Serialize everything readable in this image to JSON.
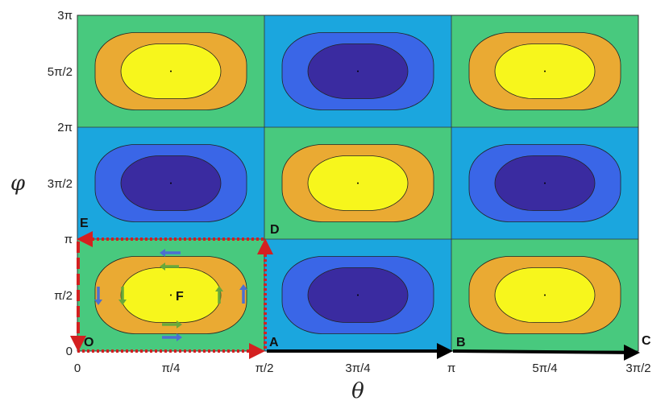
{
  "axes": {
    "xlabel": "θ",
    "ylabel": "φ",
    "xticks": [
      "0",
      "π/4",
      "π/2",
      "3π/4",
      "π",
      "5π/4",
      "3π/2"
    ],
    "yticks": [
      "0",
      "π/2",
      "π",
      "3π/2",
      "2π",
      "5π/2",
      "3π"
    ]
  },
  "colors": {
    "background_green": "#48c97e",
    "background_blue": "#1ba6de",
    "warm_ring": "#eaaa33",
    "warm_core": "#f7f61c",
    "cool_ring": "#3a66e7",
    "cool_core": "#3a2ba0",
    "path_red": "#d42020",
    "arrow_blue": "#4c6fd0",
    "arrow_green": "#68a93a",
    "path_black": "#000000"
  },
  "points": [
    {
      "id": "O",
      "label": "O"
    },
    {
      "id": "A",
      "label": "A"
    },
    {
      "id": "B",
      "label": "B"
    },
    {
      "id": "C",
      "label": "C"
    },
    {
      "id": "D",
      "label": "D"
    },
    {
      "id": "E",
      "label": "E"
    },
    {
      "id": "F",
      "label": "F"
    }
  ],
  "cells": [
    {
      "row": 0,
      "col": 0,
      "type": "warm"
    },
    {
      "row": 0,
      "col": 1,
      "type": "cool"
    },
    {
      "row": 0,
      "col": 2,
      "type": "warm"
    },
    {
      "row": 1,
      "col": 0,
      "type": "cool"
    },
    {
      "row": 1,
      "col": 1,
      "type": "warm"
    },
    {
      "row": 1,
      "col": 2,
      "type": "cool"
    },
    {
      "row": 2,
      "col": 0,
      "type": "warm"
    },
    {
      "row": 2,
      "col": 1,
      "type": "cool"
    },
    {
      "row": 2,
      "col": 2,
      "type": "warm"
    }
  ]
}
